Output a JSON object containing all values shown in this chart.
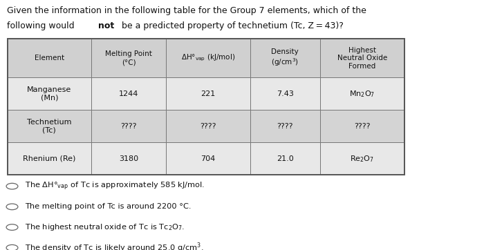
{
  "title_line1": "Given the information in the following table for the Group 7 elements, which of the",
  "title_line2_pre": "following would ",
  "title_bold": "not",
  "title_line2_post": " be a predicted property of technetium (Tc, Z = 43)?",
  "headers": [
    "Element",
    "Melting Point\n(°C)",
    "ΔH°vap (kJ/mol)",
    "Density\n(g/cm³)",
    "Highest\nNeutral Oxide\nFormed"
  ],
  "rows": [
    [
      "Manganese\n(Mn)",
      "1244",
      "221",
      "7.43",
      "Mn₂O₇"
    ],
    [
      "Technetium\n(Tc)",
      "????",
      "????",
      "????",
      "????"
    ],
    [
      "Rhenium (Re)",
      "3180",
      "704",
      "21.0",
      "Re₂O₇"
    ]
  ],
  "col_weights": [
    0.18,
    0.16,
    0.18,
    0.15,
    0.18
  ],
  "bg_color": "#ffffff",
  "header_bg": "#d0d0d0",
  "row_bgs": [
    "#e8e8e8",
    "#d4d4d4",
    "#e8e8e8"
  ],
  "border_color": "#777777",
  "text_color": "#111111",
  "option_texts": [
    "The ΔH°vap of Tc is approximately 585 kJ/mol.",
    "The melting point of Tc is around 2200 °C.",
    "The highest neutral oxide of Tc is Tc₂O₇.",
    "The density of Tc is likely around 25.0 g/cm³."
  ]
}
